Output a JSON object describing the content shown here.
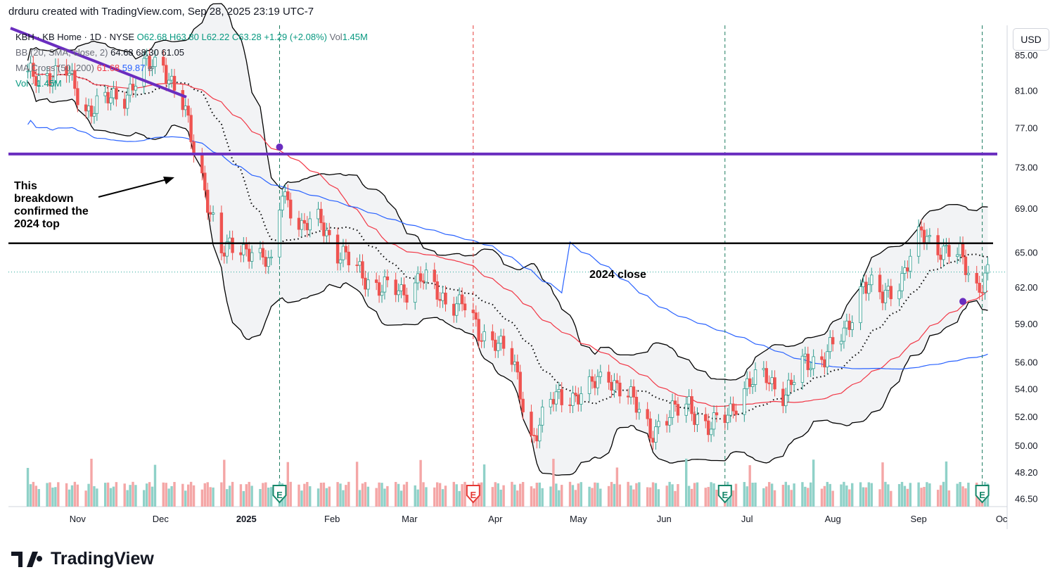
{
  "header": {
    "attribution": "drduru created with TradingView.com, Sep 28, 2025 23:19 UTC-7"
  },
  "legend": {
    "symbol": "KBH · KB Home · 1D · NYSE",
    "ohlc": "O62.68 H63.80 L62.22 C63.28 +1.29 (+2.08%)",
    "volume_label": "Vol",
    "volume_value": "1.45M",
    "bb_label": "BB (20, SMA, close, 2)",
    "bb_values": "64.68 68.30 61.05",
    "ma_label": "MA Cross (50, 200)",
    "ma50": "61.68",
    "ma200": "59.87",
    "vol_pane": "Vol · 1.45M"
  },
  "currency_button": "USD",
  "logo": {
    "text": "TradingView",
    "mark": "TV"
  },
  "annotations": {
    "breakdown": "This\nbreakdown\nconfirmed the\n2024 top",
    "close_2024": "2024 close"
  },
  "event_marker_letter": "E",
  "colors": {
    "up": "#26a69a",
    "down": "#ef5350",
    "ma50": "#f23645",
    "ma200": "#2962ff",
    "purple": "#6a2dbf",
    "band_fill": "#f2f3f5",
    "grid_dash": "#1b7a5e",
    "red_dash": "#e53935"
  },
  "chart_data": {
    "type": "candlestick",
    "title": "KBH · KB Home · 1D · NYSE",
    "y_axis": {
      "ticks": [
        85.0,
        81.0,
        77.0,
        73.0,
        69.0,
        65.0,
        62.0,
        59.0,
        56.0,
        54.0,
        52.0,
        50.0,
        48.2,
        46.5
      ],
      "scale": "log",
      "range": [
        46.0,
        88.5
      ]
    },
    "x_axis": {
      "labels": [
        "Nov",
        "Dec",
        "2025",
        "Feb",
        "Mar",
        "Apr",
        "May",
        "Jun",
        "Jul",
        "Aug",
        "Sep",
        "Oc"
      ]
    },
    "last_close": 63.28,
    "horizontal_lines": [
      {
        "label": "2024 top breakdown",
        "value": 74.3,
        "color": "purple"
      },
      {
        "label": "2024 close",
        "value": 65.8,
        "color": "black"
      }
    ],
    "earnings_events": [
      {
        "date": "2025-01-13",
        "type": "E",
        "line": "green"
      },
      {
        "date": "2025-03-24",
        "type": "E",
        "line": "red"
      },
      {
        "date": "2025-06-23",
        "type": "E",
        "line": "green"
      },
      {
        "date": "2025-09-24",
        "type": "E",
        "line": "green"
      }
    ],
    "crossovers": [
      {
        "date": "2025-01-13",
        "value": 75.0
      },
      {
        "date": "2025-09-17",
        "value": 60.8
      }
    ],
    "price_path": [
      [
        "2024-10-14",
        82.5
      ],
      [
        "2024-10-28",
        83.0
      ],
      [
        "2024-11-04",
        79.0
      ],
      [
        "2024-11-18",
        80.5
      ],
      [
        "2024-11-25",
        83.5
      ],
      [
        "2024-12-02",
        84.0
      ],
      [
        "2024-12-09",
        79.5
      ],
      [
        "2024-12-13",
        74.5
      ],
      [
        "2024-12-18",
        70.0
      ],
      [
        "2024-12-23",
        65.0
      ],
      [
        "2025-01-03",
        65.5
      ],
      [
        "2025-01-10",
        63.5
      ],
      [
        "2025-01-14",
        71.0
      ],
      [
        "2025-01-21",
        67.0
      ],
      [
        "2025-01-28",
        68.0
      ],
      [
        "2025-02-03",
        65.0
      ],
      [
        "2025-02-10",
        63.5
      ],
      [
        "2025-02-18",
        62.0
      ],
      [
        "2025-02-26",
        61.5
      ],
      [
        "2025-03-05",
        63.0
      ],
      [
        "2025-03-12",
        61.0
      ],
      [
        "2025-03-20",
        60.8
      ],
      [
        "2025-03-26",
        58.0
      ],
      [
        "2025-04-01",
        58.0
      ],
      [
        "2025-04-07",
        56.0
      ],
      [
        "2025-04-14",
        50.5
      ],
      [
        "2025-04-21",
        53.0
      ],
      [
        "2025-04-28",
        53.5
      ],
      [
        "2025-05-05",
        54.0
      ],
      [
        "2025-05-12",
        55.0
      ],
      [
        "2025-05-19",
        53.5
      ],
      [
        "2025-05-27",
        51.0
      ],
      [
        "2025-06-03",
        52.0
      ],
      [
        "2025-06-10",
        53.0
      ],
      [
        "2025-06-17",
        51.0
      ],
      [
        "2025-06-23",
        52.0
      ],
      [
        "2025-06-30",
        54.0
      ],
      [
        "2025-07-08",
        55.0
      ],
      [
        "2025-07-15",
        53.5
      ],
      [
        "2025-07-22",
        56.0
      ],
      [
        "2025-07-29",
        56.5
      ],
      [
        "2025-08-05",
        58.0
      ],
      [
        "2025-08-12",
        62.5
      ],
      [
        "2025-08-19",
        61.0
      ],
      [
        "2025-08-26",
        63.0
      ],
      [
        "2025-09-02",
        66.5
      ],
      [
        "2025-09-09",
        65.5
      ],
      [
        "2025-09-16",
        64.5
      ],
      [
        "2025-09-22",
        62.0
      ],
      [
        "2025-09-26",
        63.28
      ]
    ]
  }
}
